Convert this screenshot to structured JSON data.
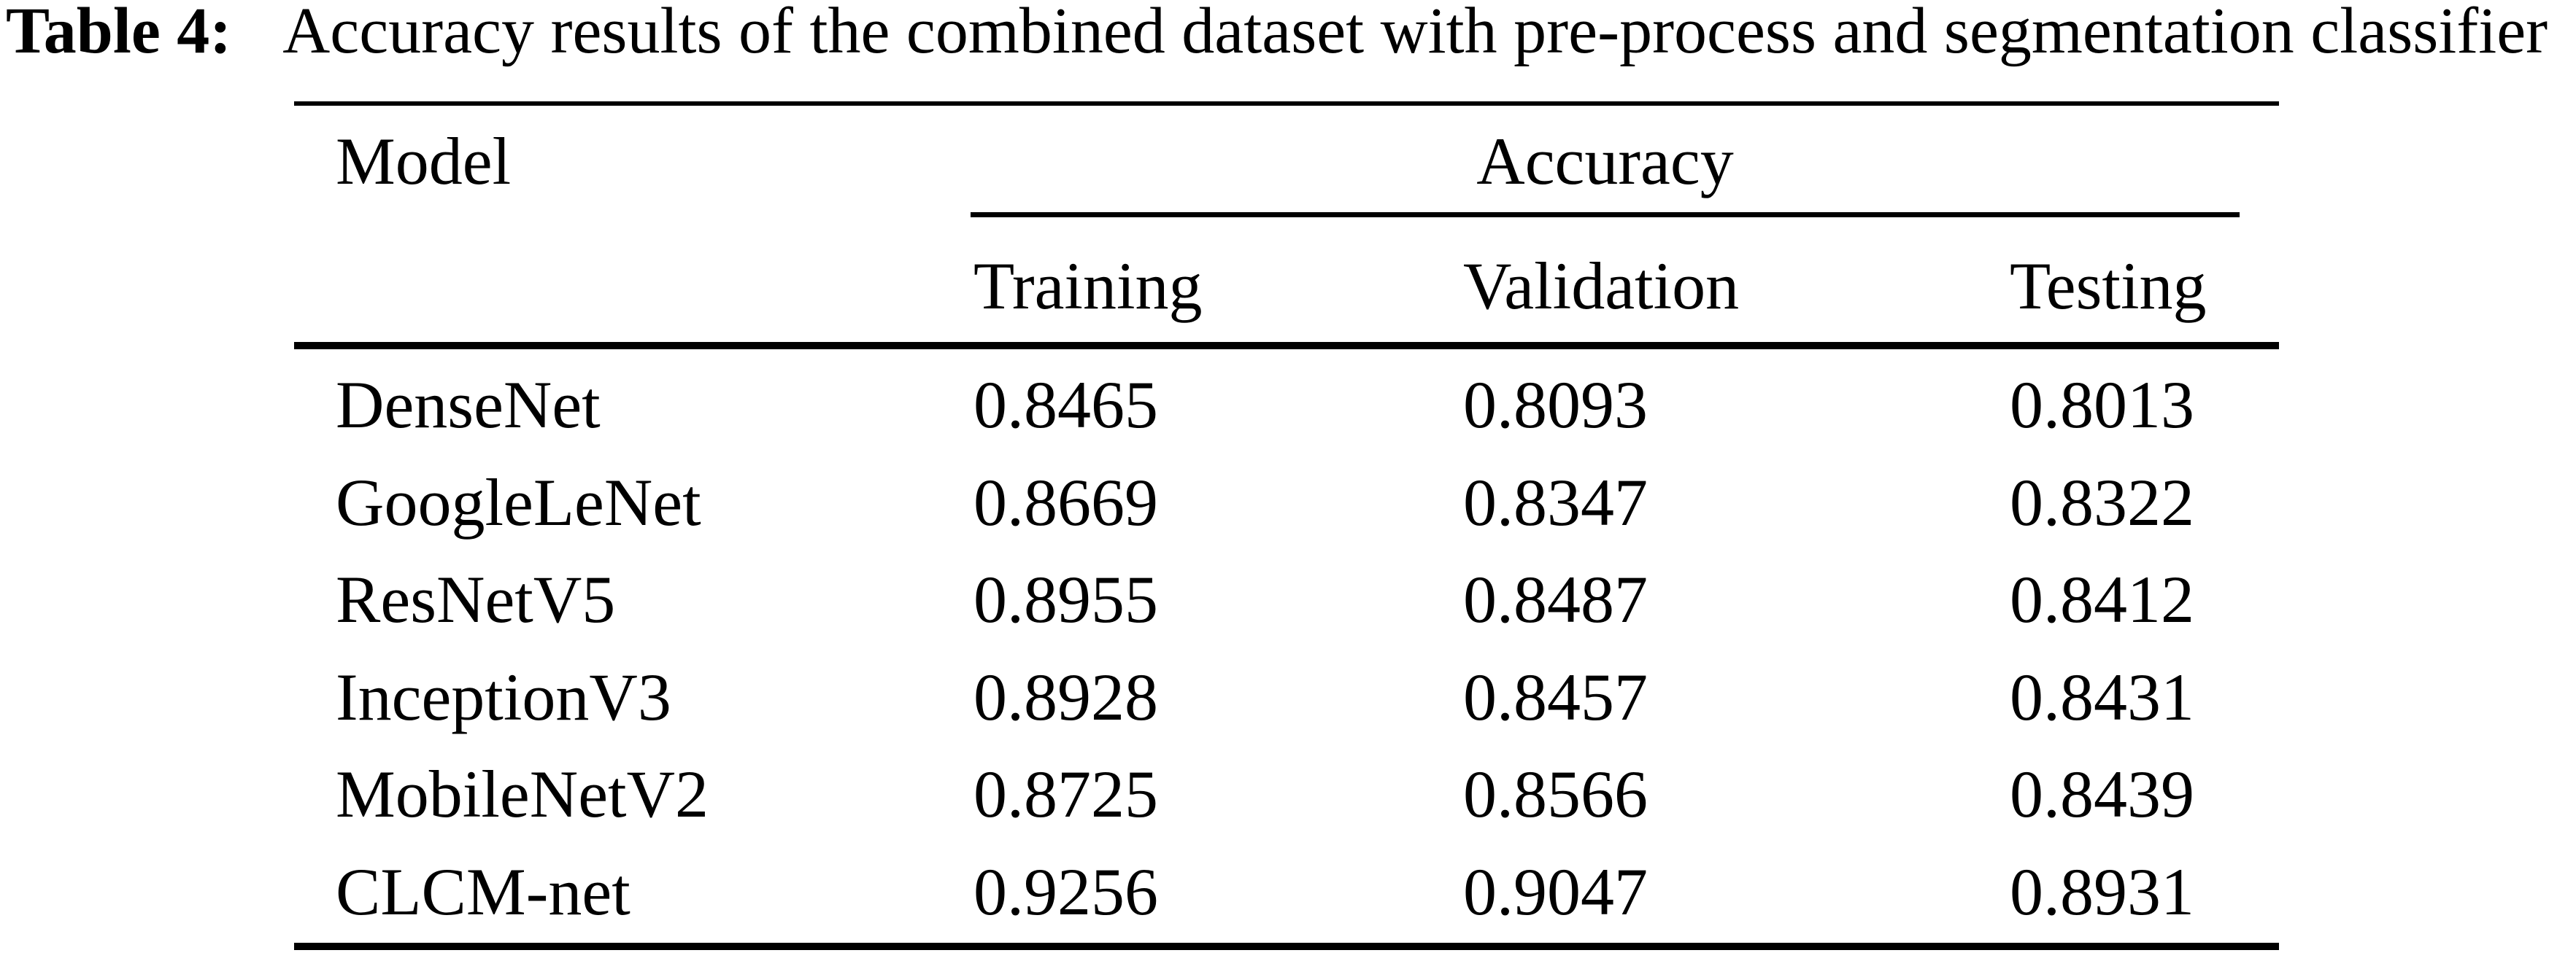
{
  "caption": {
    "label": "Table 4:",
    "text": "Accuracy results of the combined dataset with pre-process and segmentation classifier"
  },
  "table": {
    "model_header": "Model",
    "group_header": "Accuracy",
    "sub_headers": [
      "Training",
      "Validation",
      "Testing"
    ],
    "rows": [
      {
        "model": "DenseNet",
        "training": "0.8465",
        "validation": "0.8093",
        "testing": "0.8013"
      },
      {
        "model": "GoogleLeNet",
        "training": "0.8669",
        "validation": "0.8347",
        "testing": "0.8322"
      },
      {
        "model": "ResNetV5",
        "training": "0.8955",
        "validation": "0.8487",
        "testing": "0.8412"
      },
      {
        "model": "InceptionV3",
        "training": "0.8928",
        "validation": "0.8457",
        "testing": "0.8431"
      },
      {
        "model": "MobileNetV2",
        "training": "0.8725",
        "validation": "0.8566",
        "testing": "0.8439"
      },
      {
        "model": "CLCM-net",
        "training": "0.9256",
        "validation": "0.9047",
        "testing": "0.8931"
      }
    ],
    "text_color": "#000000",
    "background_color": "#ffffff",
    "rule_color": "#000000"
  }
}
